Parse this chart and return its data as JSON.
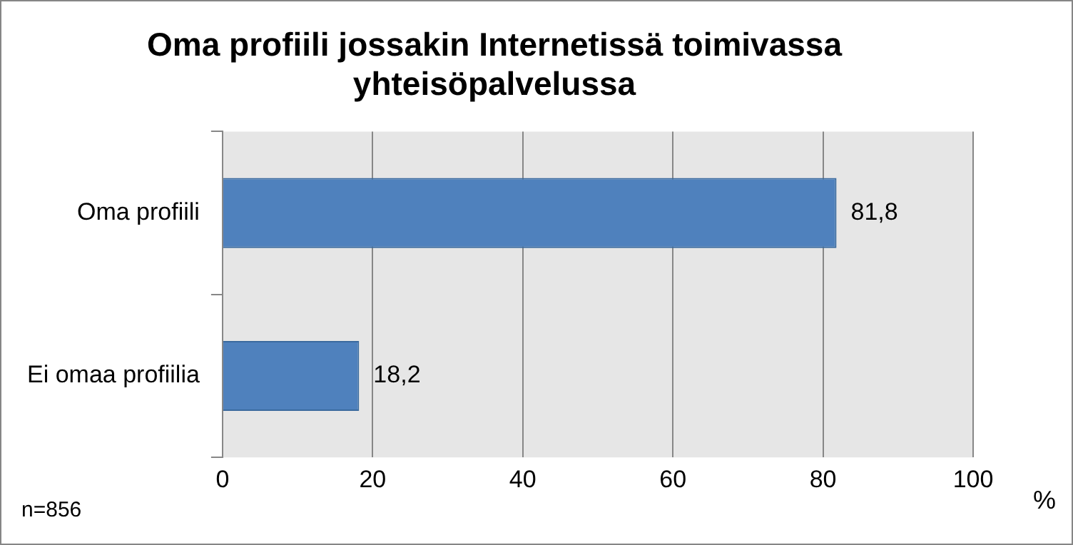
{
  "chart_data": {
    "type": "bar",
    "orientation": "horizontal",
    "title": "Oma profiili jossakin Internetissä toimivassa yhteisöpalvelussa",
    "categories": [
      "Oma profiili",
      "Ei omaa profiilia"
    ],
    "values": [
      81.8,
      18.2
    ],
    "color": "#4f81bd",
    "value_labels": [
      "81,8",
      "18,2"
    ],
    "xlim": [
      0,
      100
    ],
    "xticks": [
      0,
      20,
      40,
      60,
      80,
      100
    ],
    "xlabel": "%",
    "grid": "x",
    "annotations": [
      "n=856"
    ]
  }
}
